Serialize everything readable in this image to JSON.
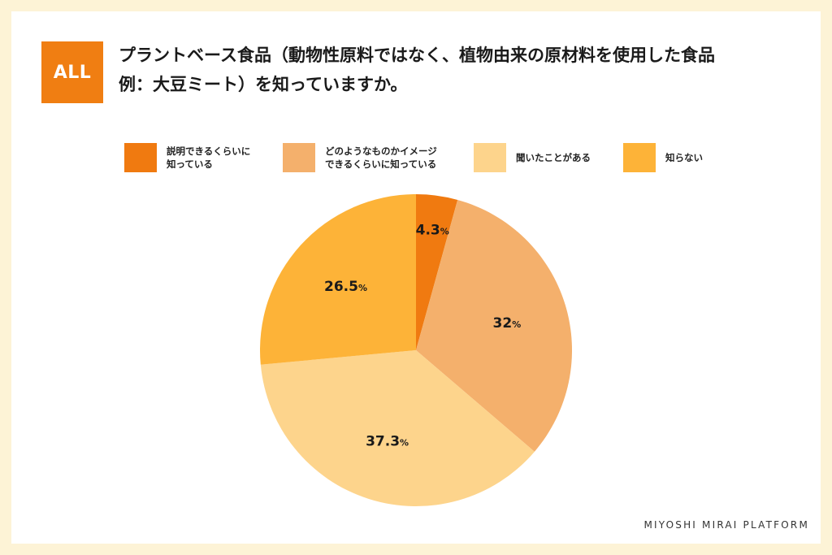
{
  "badge": "ALL",
  "title": {
    "line1": "プラントベース食品（動物性原料ではなく、植物由来の原材料を使用した食品",
    "line2": "例：大豆ミート）を知っていますか。"
  },
  "legend": [
    {
      "label": "説明できるくらいに\n知っている",
      "color": "#f07a10"
    },
    {
      "label": "どのようなものかイメージ\nできるくらいに知っている",
      "color": "#f4b06c"
    },
    {
      "label": "聞いたことがある",
      "color": "#fdd48c"
    },
    {
      "label": "知らない",
      "color": "#fdb338"
    }
  ],
  "chart_data": {
    "type": "pie",
    "categories": [
      "説明できるくらいに知っている",
      "どのようなものかイメージできるくらいに知っている",
      "聞いたことがある",
      "知らない"
    ],
    "values": [
      4.3,
      32,
      37.3,
      26.5
    ],
    "value_labels": [
      "4.3",
      "32",
      "37.3",
      "26.5"
    ],
    "unit": "%",
    "colors": [
      "#f07a10",
      "#f4b06c",
      "#fdd48c",
      "#fdb338"
    ],
    "start": "12 o'clock",
    "direction": "clockwise",
    "legend_position": "top"
  },
  "brand": "MIYOSHI MIRAI PLATFORM"
}
